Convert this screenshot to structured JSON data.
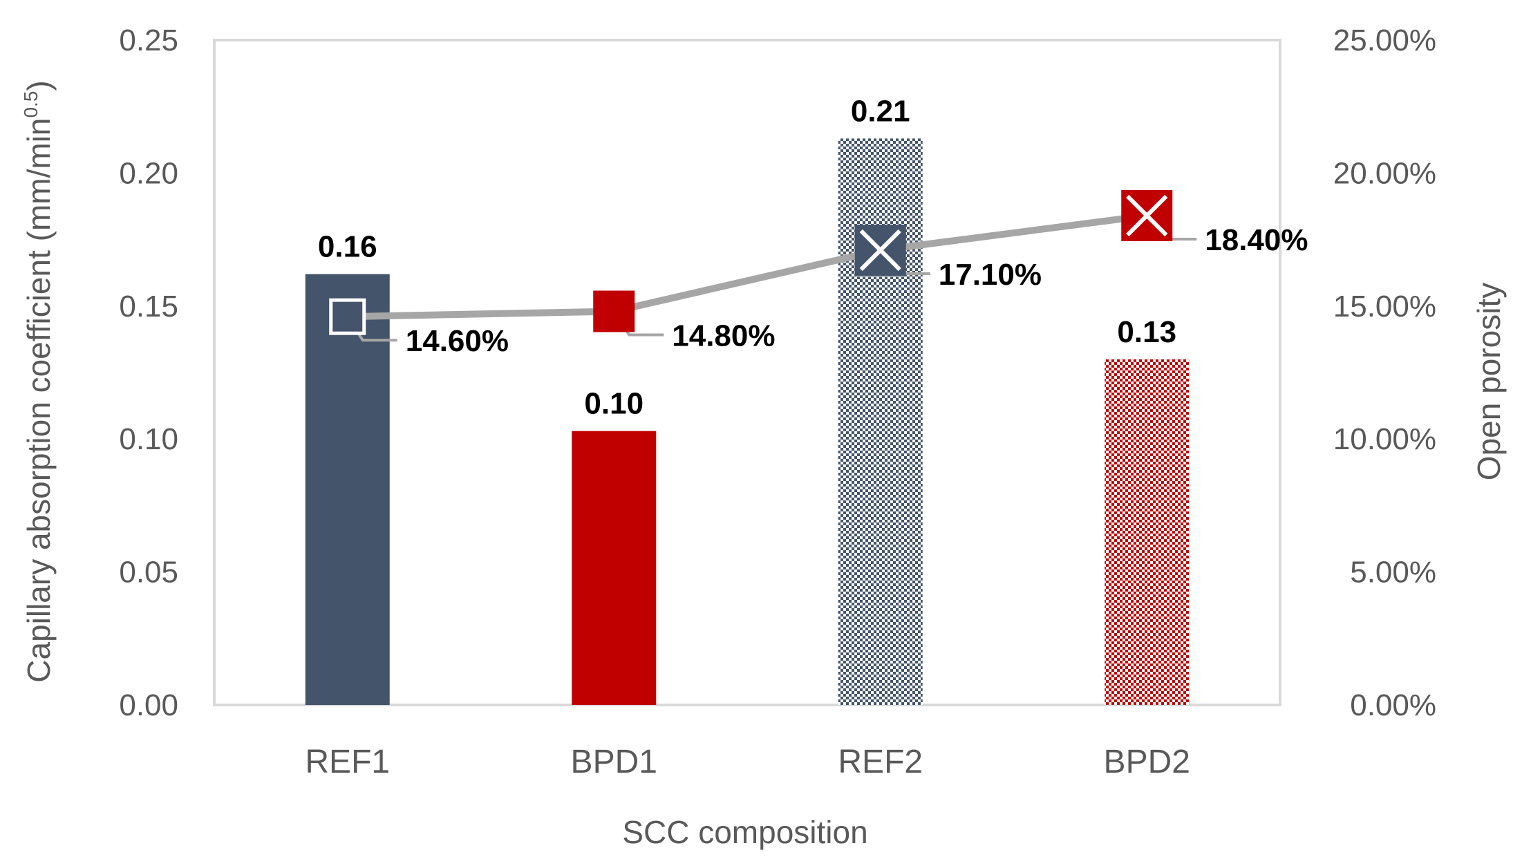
{
  "chart_data": {
    "type": "bar+line",
    "title": "",
    "xlabel": "SCC composition",
    "ylabel_left": "Capillary absorption coefficient (mm/min",
    "ylabel_left_sup": "0.5",
    "ylabel_left_close": ")",
    "ylabel_right": "Open porosity",
    "categories": [
      "REF1",
      "BPD1",
      "REF2",
      "BPD2"
    ],
    "left_axis": {
      "ylim": [
        0,
        0.25
      ],
      "ticks": [
        0,
        0.05,
        0.1,
        0.15,
        0.2,
        0.25
      ],
      "tick_labels": [
        "0.00",
        "0.05",
        "0.10",
        "0.15",
        "0.20",
        "0.25"
      ]
    },
    "right_axis": {
      "ylim": [
        0,
        25
      ],
      "ticks": [
        0,
        5,
        10,
        15,
        20,
        25
      ],
      "tick_labels": [
        "0.00%",
        "5.00%",
        "10.00%",
        "15.00%",
        "20.00%",
        "25.00%"
      ]
    },
    "bars": {
      "name": "Capillary absorption coefficient",
      "values": [
        0.162,
        0.103,
        0.213,
        0.13
      ],
      "labels": [
        "0.16",
        "0.10",
        "0.21",
        "0.13"
      ],
      "colors": [
        "#44546a",
        "#c00000",
        "#44546a",
        "#c00000"
      ],
      "patterns": [
        "solid",
        "solid",
        "checker",
        "checker"
      ]
    },
    "line": {
      "name": "Open porosity",
      "values": [
        14.6,
        14.8,
        17.1,
        18.4
      ],
      "labels": [
        "14.60%",
        "14.80%",
        "17.10%",
        "18.40%"
      ],
      "line_color": "#a6a6a6",
      "marker_colors": [
        "#44546a",
        "#c00000",
        "#44546a",
        "#c00000"
      ],
      "marker_types": [
        "square-outline",
        "square",
        "x-square",
        "x-square"
      ]
    }
  }
}
